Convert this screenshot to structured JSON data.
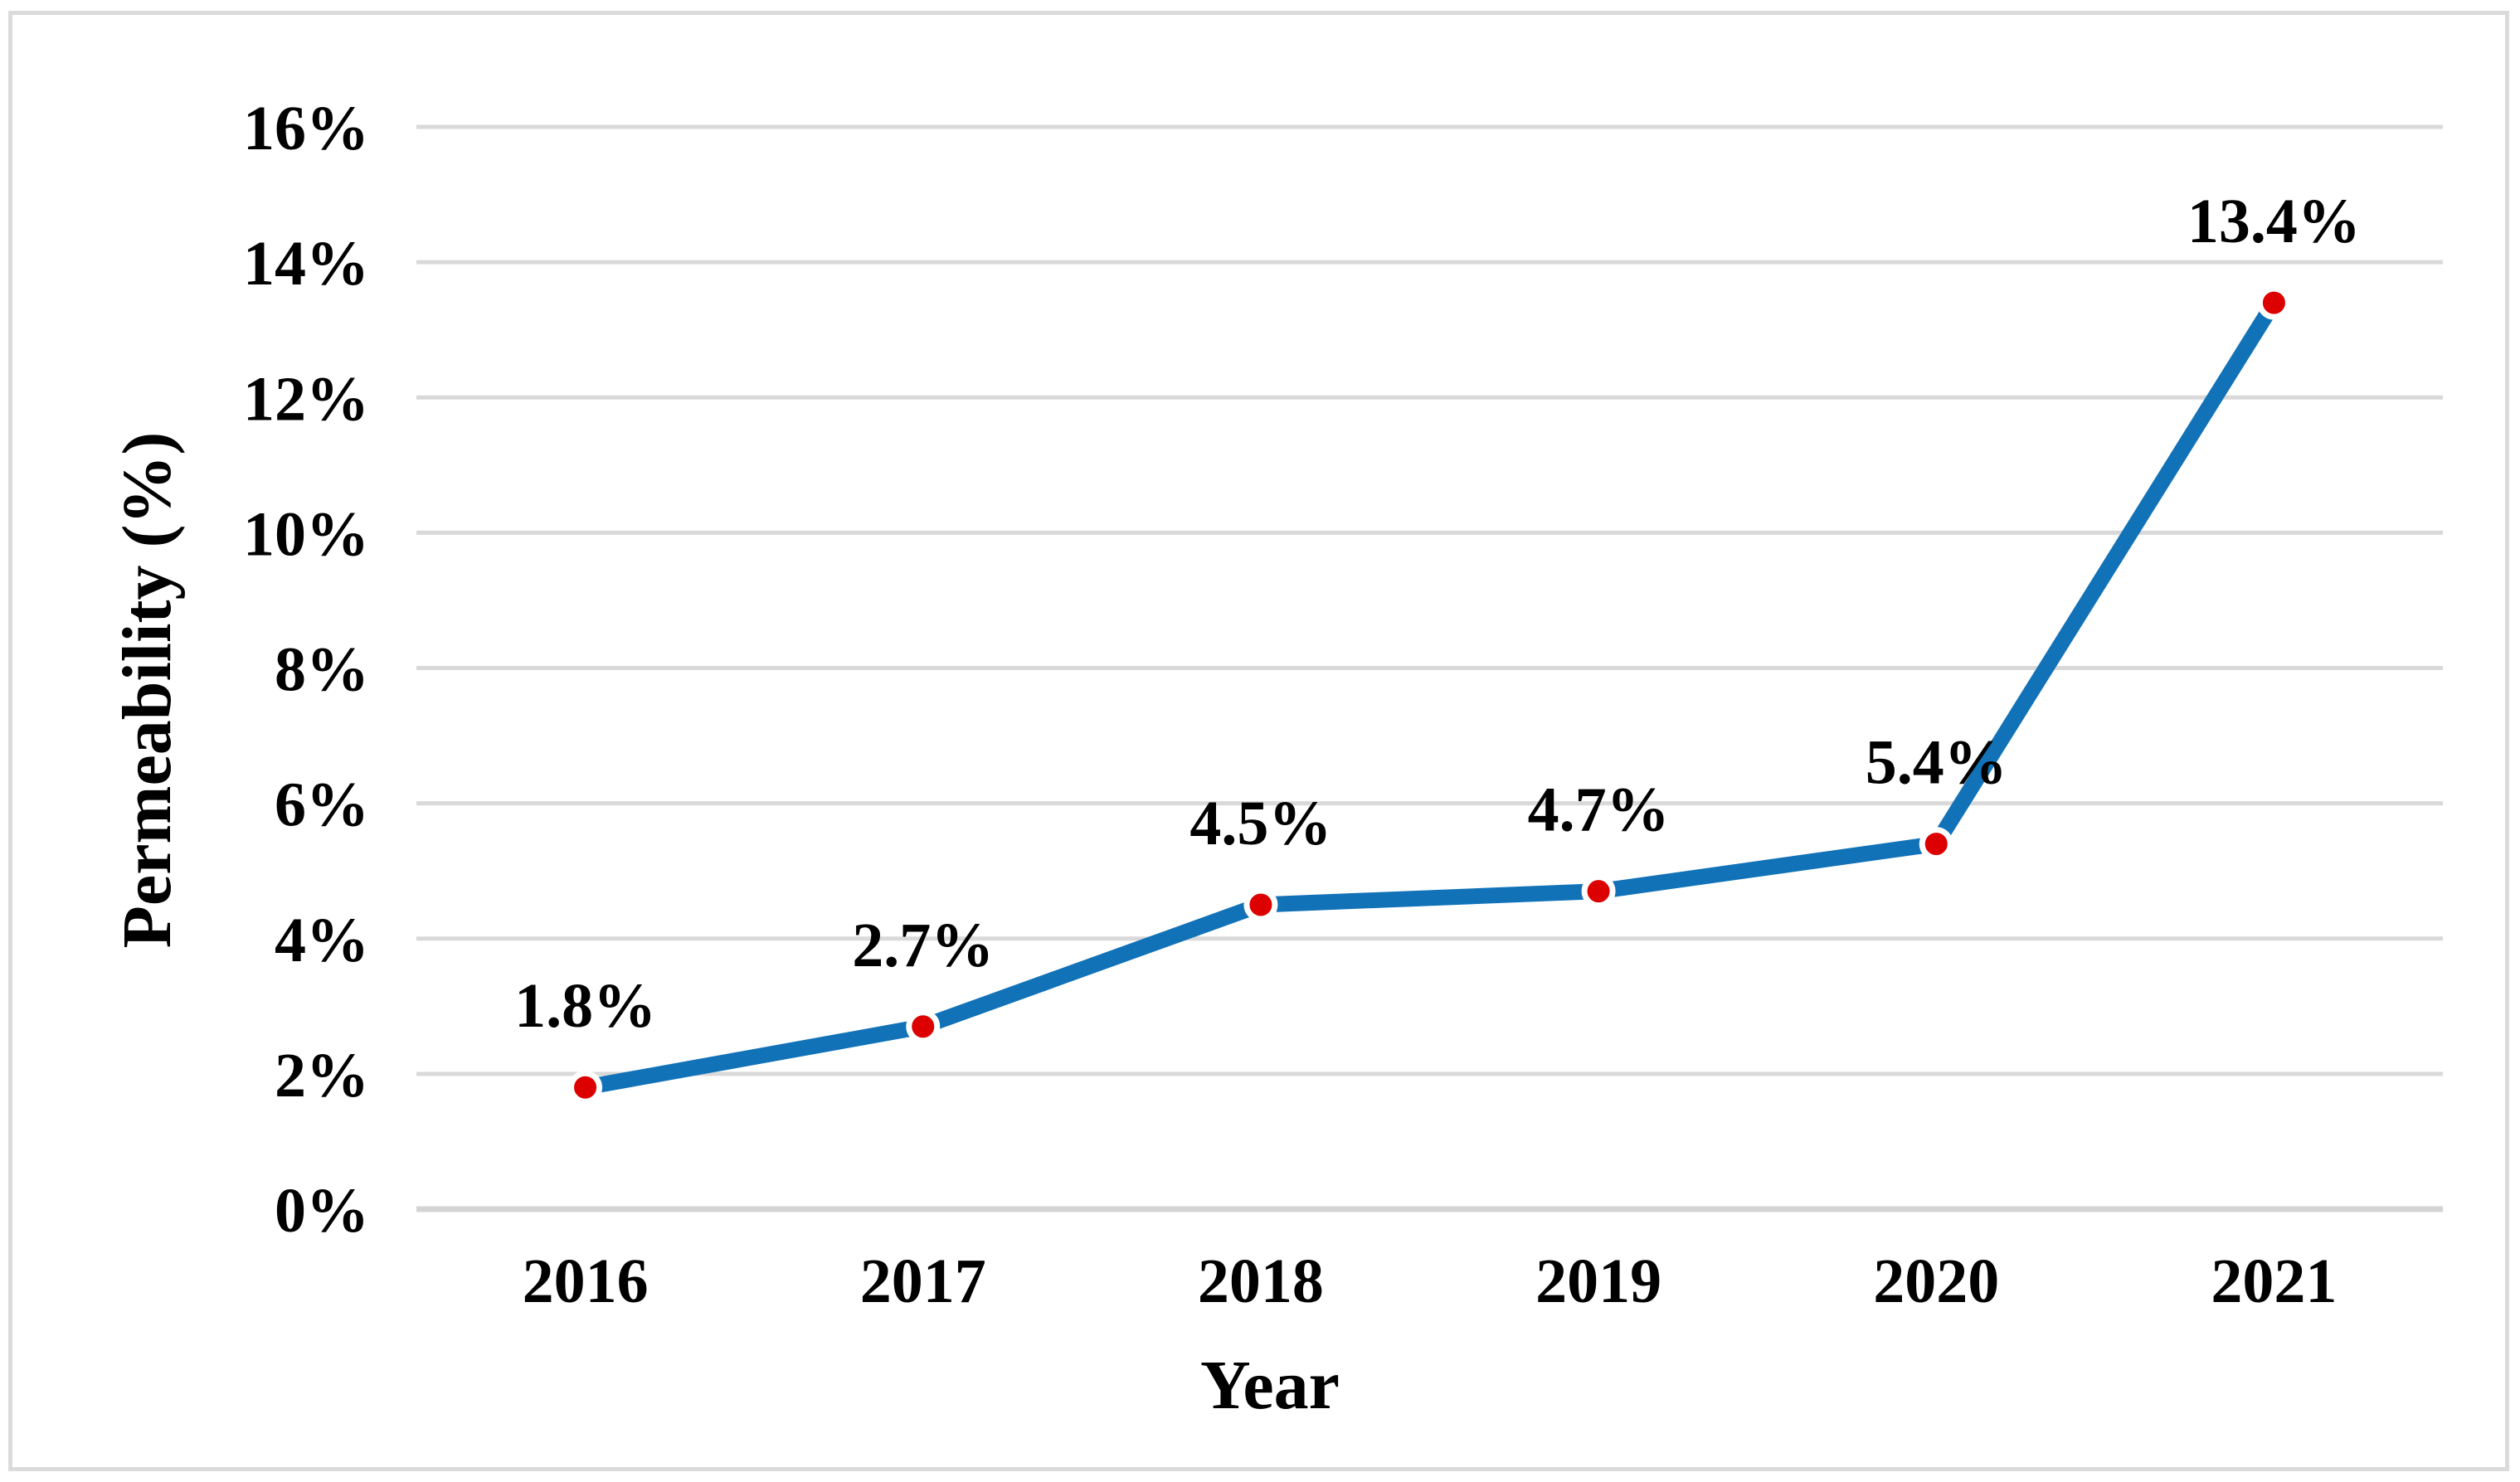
{
  "chart_data": {
    "type": "line",
    "title": "",
    "xlabel": "Year",
    "ylabel": "Permeability (%)",
    "categories": [
      "2016",
      "2017",
      "2018",
      "2019",
      "2020",
      "2021"
    ],
    "series": [
      {
        "name": "Permeability",
        "values": [
          1.8,
          2.7,
          4.5,
          4.7,
          5.4,
          13.4
        ],
        "data_labels": [
          "1.8%",
          "2.7%",
          "4.5%",
          "4.7%",
          "5.4%",
          "13.4%"
        ]
      }
    ],
    "ylim": [
      0,
      16
    ],
    "y_tick_step": 2,
    "y_tick_labels": [
      "0%",
      "2%",
      "4%",
      "6%",
      "8%",
      "10%",
      "12%",
      "14%",
      "16%"
    ],
    "grid": true,
    "legend_position": "none",
    "colors": {
      "line": "#1172B8",
      "marker": "#DC0000",
      "marker_halo": "#FFFFFF",
      "gridline": "#D9D9D9",
      "axis_line": "#D4D4D4",
      "text": "#000000",
      "frame_border": "#DBDBDB",
      "background": "#FFFFFF"
    }
  }
}
